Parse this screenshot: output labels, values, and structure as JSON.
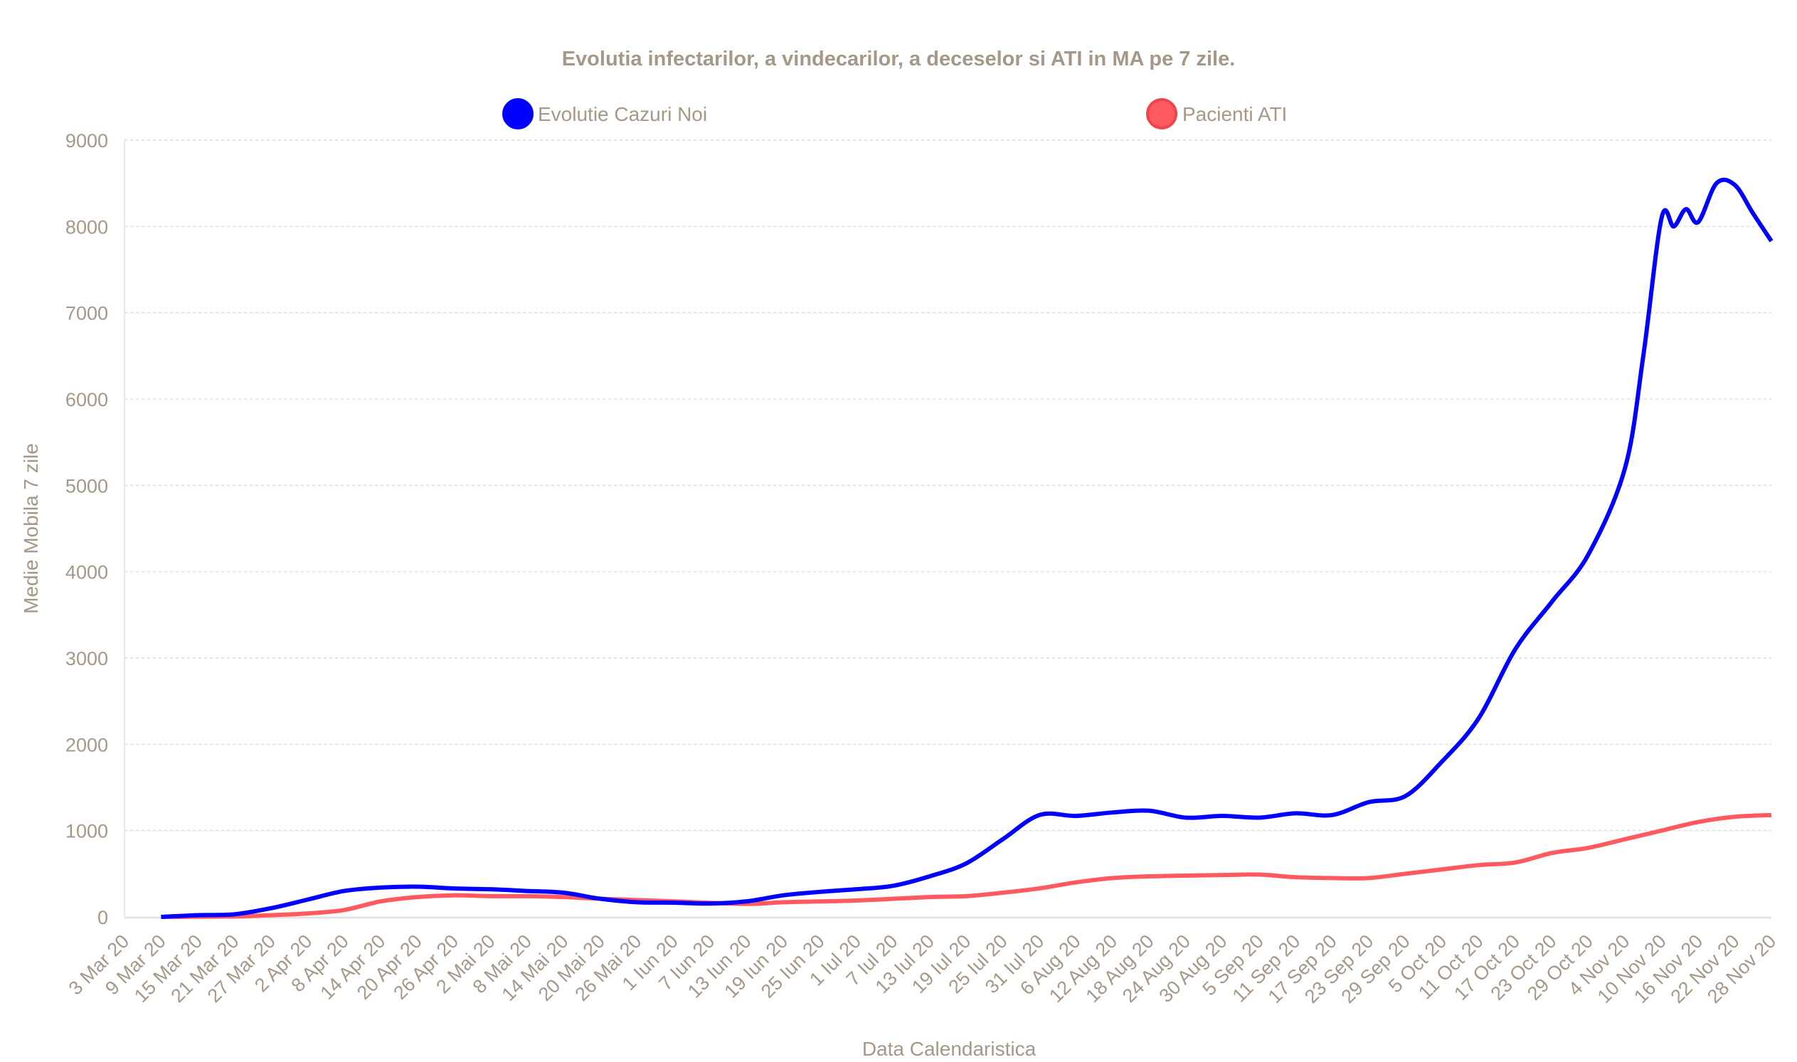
{
  "chart_data": {
    "type": "line",
    "title": "Evolutia infectarilor, a vindecarilor, a deceselor si ATI in MA pe 7 zile.",
    "xlabel": "Data Calendaristica",
    "ylabel": "Medie Mobila 7 zile",
    "ylim": [
      0,
      9000
    ],
    "yticks": [
      0,
      1000,
      2000,
      3000,
      4000,
      5000,
      6000,
      7000,
      8000,
      9000
    ],
    "xrange": [
      "2020-03-03",
      "2020-11-28"
    ],
    "grid": true,
    "legend_position": "top",
    "xtick_labels": [
      "3 Mar 20",
      "9 Mar 20",
      "15 Mar 20",
      "21 Mar 20",
      "27 Mar 20",
      "2 Apr 20",
      "8 Apr 20",
      "14 Apr 20",
      "20 Apr 20",
      "26 Apr 20",
      "2 Mai 20",
      "8 Mai 20",
      "14 Mai 20",
      "20 Mai 20",
      "26 Mai 20",
      "1 Iun 20",
      "7 Iun 20",
      "13 Iun 20",
      "19 Iun 20",
      "25 Iun 20",
      "1 Iul 20",
      "7 Iul 20",
      "13 Iul 20",
      "19 Iul 20",
      "25 Iul 20",
      "31 Iul 20",
      "6 Aug 20",
      "12 Aug 20",
      "18 Aug 20",
      "24 Aug 20",
      "30 Aug 20",
      "5 Sep 20",
      "11 Sep 20",
      "17 Sep 20",
      "23 Sep 20",
      "29 Sep 20",
      "5 Oct 20",
      "11 Oct 20",
      "17 Oct 20",
      "23 Oct 20",
      "29 Oct 20",
      "4 Nov 20",
      "10 Nov 20",
      "16 Nov 20",
      "22 Nov 20",
      "28 Nov 20"
    ],
    "series": [
      {
        "name": "Evolutie Cazuri Noi",
        "color": "#0000ff",
        "x": [
          "2020-03-09",
          "2020-03-15",
          "2020-03-21",
          "2020-03-27",
          "2020-04-02",
          "2020-04-08",
          "2020-04-14",
          "2020-04-20",
          "2020-04-26",
          "2020-05-02",
          "2020-05-08",
          "2020-05-14",
          "2020-05-20",
          "2020-05-26",
          "2020-06-01",
          "2020-06-07",
          "2020-06-13",
          "2020-06-19",
          "2020-06-25",
          "2020-07-01",
          "2020-07-07",
          "2020-07-13",
          "2020-07-19",
          "2020-07-25",
          "2020-07-31",
          "2020-08-06",
          "2020-08-12",
          "2020-08-18",
          "2020-08-24",
          "2020-08-30",
          "2020-09-05",
          "2020-09-11",
          "2020-09-17",
          "2020-09-23",
          "2020-09-29",
          "2020-10-05",
          "2020-10-11",
          "2020-10-17",
          "2020-10-23",
          "2020-10-29",
          "2020-11-04",
          "2020-11-07",
          "2020-11-10",
          "2020-11-12",
          "2020-11-14",
          "2020-11-16",
          "2020-11-19",
          "2020-11-22",
          "2020-11-25",
          "2020-11-28"
        ],
        "values": [
          0,
          20,
          30,
          100,
          200,
          300,
          340,
          350,
          330,
          320,
          300,
          280,
          210,
          170,
          165,
          155,
          180,
          250,
          290,
          320,
          360,
          470,
          620,
          900,
          1180,
          1170,
          1210,
          1230,
          1150,
          1170,
          1150,
          1200,
          1180,
          1330,
          1400,
          1800,
          2300,
          3100,
          3650,
          4200,
          5200,
          6500,
          8100,
          8000,
          8200,
          8050,
          8500,
          8480,
          8150,
          7830
        ]
      },
      {
        "name": "Pacienti ATI",
        "color": "#ff5a5f",
        "x": [
          "2020-03-09",
          "2020-03-21",
          "2020-03-27",
          "2020-04-02",
          "2020-04-08",
          "2020-04-14",
          "2020-04-20",
          "2020-04-26",
          "2020-05-02",
          "2020-05-08",
          "2020-05-14",
          "2020-05-20",
          "2020-06-01",
          "2020-06-13",
          "2020-06-19",
          "2020-07-01",
          "2020-07-13",
          "2020-07-19",
          "2020-07-25",
          "2020-07-31",
          "2020-08-06",
          "2020-08-12",
          "2020-08-18",
          "2020-08-30",
          "2020-09-05",
          "2020-09-11",
          "2020-09-17",
          "2020-09-23",
          "2020-09-29",
          "2020-10-05",
          "2020-10-11",
          "2020-10-17",
          "2020-10-23",
          "2020-10-29",
          "2020-11-04",
          "2020-11-10",
          "2020-11-16",
          "2020-11-22",
          "2020-11-28"
        ],
        "values": [
          0,
          5,
          20,
          40,
          80,
          180,
          230,
          250,
          240,
          240,
          230,
          210,
          180,
          150,
          170,
          190,
          230,
          240,
          280,
          330,
          400,
          450,
          470,
          485,
          490,
          460,
          450,
          450,
          500,
          550,
          600,
          630,
          740,
          800,
          900,
          1000,
          1100,
          1160,
          1180
        ]
      }
    ]
  }
}
